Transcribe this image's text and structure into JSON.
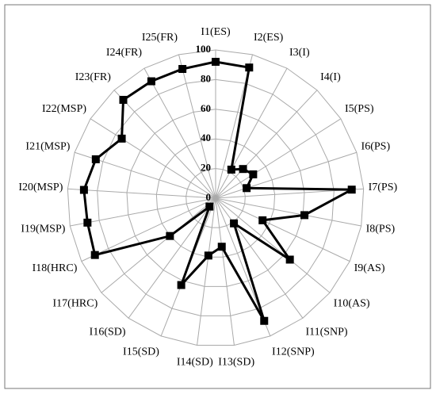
{
  "chart_data": {
    "type": "radar",
    "categories": [
      "I1(ES)",
      "I2(ES)",
      "I3(I)",
      "I4(I)",
      "I5(PS)",
      "I6(PS)",
      "I7(PS)",
      "I8(PS)",
      "I9(AS)",
      "I10(AS)",
      "I11(SNP)",
      "I12(SNP)",
      "I13(SD)",
      "I14(SD)",
      "I15(SD)",
      "I16(SD)",
      "I17(HRC)",
      "I18(HRC)",
      "I19(MSP)",
      "I20(MSP)",
      "I21(MSP)",
      "I22(MSP)",
      "I23(FR)",
      "I24(FR)",
      "I25(FR)"
    ],
    "values": [
      92,
      91,
      22,
      27,
      30,
      22,
      92,
      61,
      35,
      65,
      21,
      89,
      33,
      39,
      63,
      7,
      40,
      90,
      88,
      89,
      85,
      75,
      91,
      90,
      90
    ],
    "color": "#000000",
    "ylim": [
      0,
      100
    ],
    "yticks": [
      0,
      20,
      40,
      60,
      80,
      100
    ],
    "grid": true
  }
}
